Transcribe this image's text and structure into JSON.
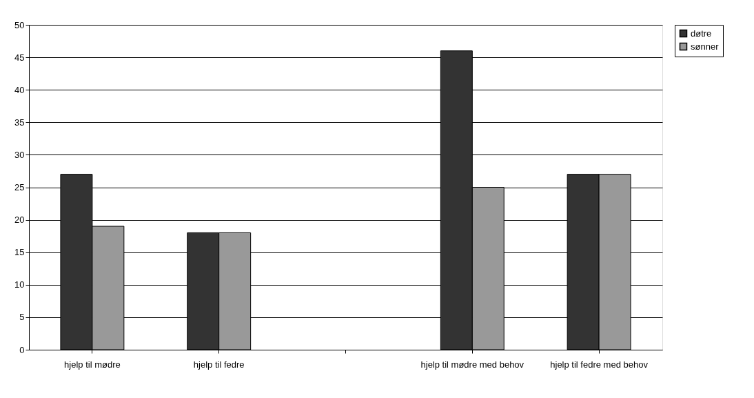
{
  "chart_data": {
    "type": "bar",
    "categories": [
      "hjelp til mødre",
      "hjelp til fedre",
      null,
      "hjelp til mødre med behov",
      "hjelp til fedre med behov"
    ],
    "series": [
      {
        "name": "døtre",
        "color": "#333333",
        "values": [
          27,
          18,
          null,
          46,
          27
        ]
      },
      {
        "name": "sønner",
        "color": "#999999",
        "values": [
          19,
          18,
          null,
          25,
          27
        ]
      }
    ],
    "ylim": [
      0,
      50
    ],
    "yticks": [
      0,
      5,
      10,
      15,
      20,
      25,
      30,
      35,
      40,
      45,
      50
    ],
    "grid": "y",
    "legend": "right"
  }
}
